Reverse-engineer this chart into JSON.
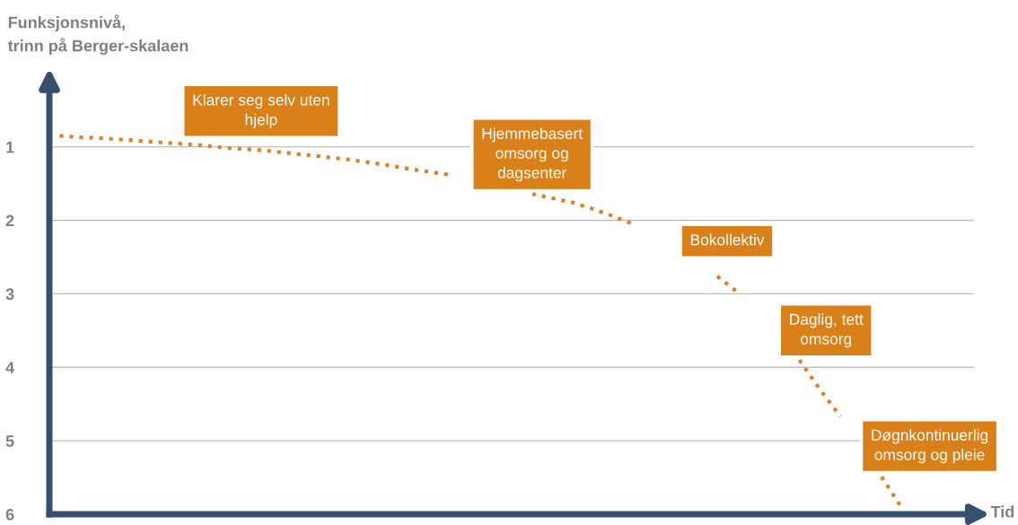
{
  "chart_data": {
    "type": "line",
    "ylabel": "Funksjonsnivå,\ntrinn på Berger-skalaen",
    "xlabel": "Tid",
    "categories": [
      null,
      null,
      null,
      null,
      null,
      null,
      null,
      null,
      null,
      null,
      null,
      null,
      null,
      null,
      null,
      null,
      null,
      null,
      null,
      null,
      null,
      null,
      null,
      null,
      null,
      null,
      null,
      null,
      null,
      null,
      null,
      null,
      null,
      null,
      null,
      null,
      null,
      null,
      null,
      null,
      null,
      null,
      null,
      null,
      null
    ],
    "series": [
      {
        "color": "#d9822b",
        "values": [
          0.85,
          0.87,
          0.88,
          0.9,
          0.92,
          0.94,
          0.96,
          0.98,
          1.01,
          1.03,
          1.05,
          1.08,
          1.11,
          1.14,
          1.17,
          1.21,
          1.25,
          1.3,
          1.34,
          1.38,
          null,
          null,
          null,
          1.64,
          1.7,
          1.76,
          1.85,
          1.95,
          2.06,
          null,
          null,
          null,
          2.76,
          2.98,
          null,
          null,
          3.9,
          4.3,
          4.67,
          null,
          5.49,
          5.92,
          null,
          null,
          null
        ]
      }
    ],
    "ylim": [
      6,
      0.1
    ],
    "yticks": [
      1,
      2,
      3,
      4,
      5,
      6
    ],
    "grid": "y",
    "line_style": "dotted",
    "marker": "none",
    "legend": false,
    "tick_labels": "y",
    "annotations": [
      "Klarer seg selv uten\nhjelp",
      "Hjemmebasert\nomsorg og\ndagsenter",
      "Bokollektiv",
      "Daglig, tett\nomsorg",
      "Døgnkontinuerlig\nomsorg og pleie"
    ]
  }
}
